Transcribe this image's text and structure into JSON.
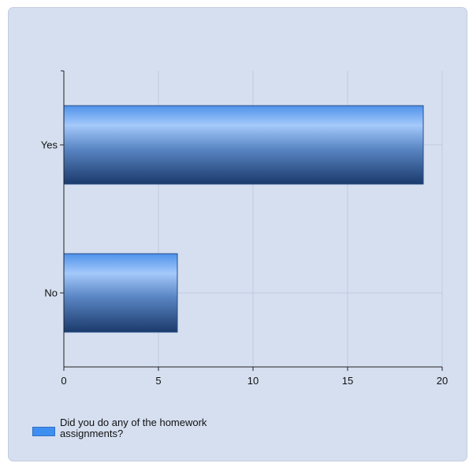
{
  "chart_data": {
    "type": "bar",
    "orientation": "horizontal",
    "categories": [
      "Yes",
      "No"
    ],
    "series": [
      {
        "name": "Did you do any of the homework assignments?",
        "values": [
          19,
          6
        ]
      }
    ],
    "xlim": [
      0,
      20
    ],
    "xticks": [
      0,
      5,
      10,
      15,
      20
    ],
    "grid": true,
    "legend_position": "bottom-left",
    "colors": {
      "bar_light": "#a4c9fb",
      "bar_mid": "#4f92ea",
      "bar_dark": "#1b3a6b",
      "background": "#d5dff0",
      "grid": "#c0cbe0"
    }
  },
  "legend": {
    "label": "Did you do any of the homework assignments?"
  }
}
